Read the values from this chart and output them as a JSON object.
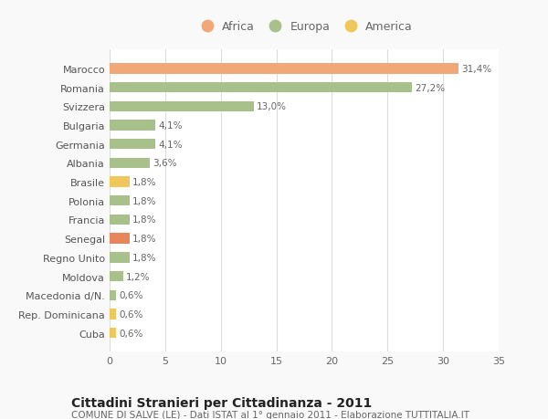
{
  "categories": [
    "Cuba",
    "Rep. Dominicana",
    "Macedonia d/N.",
    "Moldova",
    "Regno Unito",
    "Senegal",
    "Francia",
    "Polonia",
    "Brasile",
    "Albania",
    "Germania",
    "Bulgaria",
    "Svizzera",
    "Romania",
    "Marocco"
  ],
  "values": [
    0.6,
    0.6,
    0.6,
    1.2,
    1.8,
    1.8,
    1.8,
    1.8,
    1.8,
    3.6,
    4.1,
    4.1,
    13.0,
    27.2,
    31.4
  ],
  "labels": [
    "0,6%",
    "0,6%",
    "0,6%",
    "1,2%",
    "1,8%",
    "1,8%",
    "1,8%",
    "1,8%",
    "1,8%",
    "3,6%",
    "4,1%",
    "4,1%",
    "13,0%",
    "27,2%",
    "31,4%"
  ],
  "colors": [
    "#f0c75a",
    "#f0c75a",
    "#a8c08a",
    "#a8c08a",
    "#a8c08a",
    "#e8855a",
    "#a8c08a",
    "#a8c08a",
    "#f0c75a",
    "#a8c08a",
    "#a8c08a",
    "#a8c08a",
    "#a8c08a",
    "#a8c08a",
    "#f0a878"
  ],
  "legend_labels": [
    "Africa",
    "Europa",
    "America"
  ],
  "legend_colors": [
    "#f0a878",
    "#a8c08a",
    "#f0c75a"
  ],
  "title": "Cittadini Stranieri per Cittadinanza - 2011",
  "subtitle": "COMUNE DI SALVE (LE) - Dati ISTAT al 1° gennaio 2011 - Elaborazione TUTTITALIA.IT",
  "xlim": [
    0,
    35
  ],
  "xticks": [
    0,
    5,
    10,
    15,
    20,
    25,
    30,
    35
  ],
  "background_color": "#f9f9f9",
  "bar_background": "#ffffff",
  "grid_color": "#dddddd",
  "title_fontsize": 10,
  "subtitle_fontsize": 7.5,
  "label_fontsize": 7.5,
  "tick_fontsize": 8,
  "legend_fontsize": 9
}
